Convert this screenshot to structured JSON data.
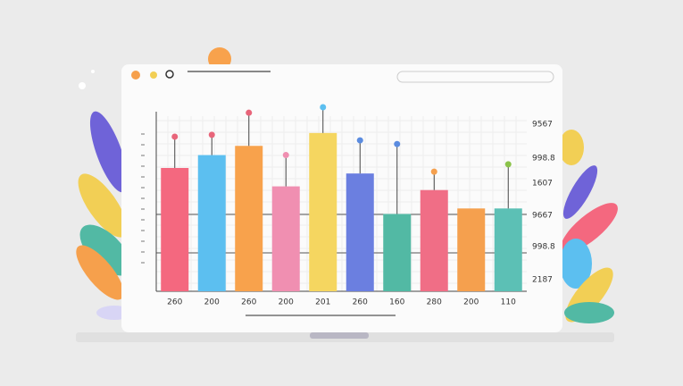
{
  "chart_data": {
    "type": "bar",
    "categories": [
      "260",
      "200",
      "260",
      "200",
      "201",
      "260",
      "160",
      "280",
      "200",
      "110"
    ],
    "values": [
      67,
      74,
      79,
      57,
      86,
      64,
      42,
      55,
      45,
      45
    ],
    "colors": [
      "#f4687f",
      "#5cbff0",
      "#f8a24c",
      "#f08fb1",
      "#f5d660",
      "#6b7fe0",
      "#52b9a4",
      "#f06e86",
      "#f5a04e",
      "#5cc0b5"
    ],
    "pin_values": [
      84,
      85,
      97,
      74,
      100,
      82,
      80,
      65,
      null,
      69
    ],
    "pin_colors": [
      "#e8657a",
      "#e8657a",
      "#e8657a",
      "#f08fb1",
      "#5cbff0",
      "#5b8ce0",
      "#5b8ce0",
      "#f5a04e",
      null,
      "#8bc34a"
    ],
    "ylim": [
      0,
      100
    ],
    "right_labels": [
      "9567",
      "998.8",
      "1607",
      "9667",
      "998.8",
      "2187"
    ],
    "grid": true
  }
}
